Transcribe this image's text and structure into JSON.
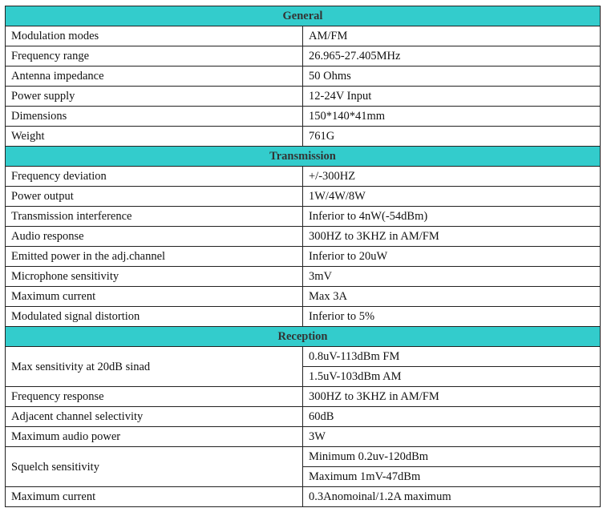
{
  "header_color": "#33cccc",
  "sections": [
    {
      "title": "General",
      "rows": [
        {
          "label": "Modulation modes",
          "values": [
            "AM/FM"
          ]
        },
        {
          "label": "Frequency range",
          "values": [
            "26.965-27.405MHz"
          ]
        },
        {
          "label": "Antenna impedance",
          "values": [
            "50 Ohms"
          ]
        },
        {
          "label": "Power supply",
          "values": [
            "12-24V Input"
          ]
        },
        {
          "label": "Dimensions",
          "values": [
            "150*140*41mm"
          ]
        },
        {
          "label": "Weight",
          "values": [
            "761G"
          ]
        }
      ]
    },
    {
      "title": "Transmission",
      "rows": [
        {
          "label": "Frequency deviation",
          "values": [
            "+/-300HZ"
          ]
        },
        {
          "label": "Power output",
          "values": [
            "1W/4W/8W"
          ]
        },
        {
          "label": "Transmission interference",
          "values": [
            "Inferior to 4nW(-54dBm)"
          ]
        },
        {
          "label": "Audio response",
          "values": [
            "300HZ to 3KHZ in AM/FM"
          ]
        },
        {
          "label": "Emitted power in the adj.channel",
          "values": [
            "Inferior to 20uW"
          ]
        },
        {
          "label": "Microphone sensitivity",
          "values": [
            "3mV"
          ]
        },
        {
          "label": "Maximum current",
          "values": [
            "Max 3A"
          ]
        },
        {
          "label": "Modulated signal distortion",
          "values": [
            "Inferior to 5%"
          ]
        }
      ]
    },
    {
      "title": "Reception",
      "rows": [
        {
          "label": "Max sensitivity at 20dB sinad",
          "values": [
            "0.8uV-113dBm FM",
            "1.5uV-103dBm AM"
          ]
        },
        {
          "label": "Frequency response",
          "values": [
            "300HZ to 3KHZ in AM/FM"
          ]
        },
        {
          "label": "Adjacent channel selectivity",
          "values": [
            "60dB"
          ]
        },
        {
          "label": "Maximum audio power",
          "values": [
            "3W"
          ]
        },
        {
          "label": "Squelch sensitivity",
          "values": [
            "Minimum 0.2uv-120dBm",
            "Maximum 1mV-47dBm"
          ]
        },
        {
          "label": "Maximum current",
          "values": [
            "0.3Anomoinal/1.2A maximum"
          ]
        }
      ]
    }
  ]
}
